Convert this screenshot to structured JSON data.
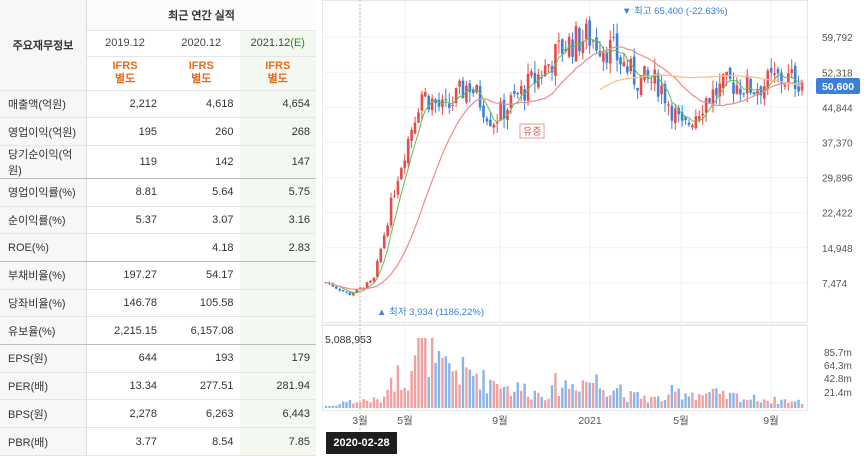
{
  "table": {
    "title": "최근 연간 실적",
    "row_header": "주요재무정보",
    "periods": [
      "2019.12",
      "2020.12",
      "2021.12"
    ],
    "estimate_mark": "(E)",
    "ifrs": [
      "IFRS\n별도",
      "IFRS\n별도",
      "IFRS\n별도"
    ],
    "rows": [
      {
        "label": "매출액(억원)",
        "values": [
          "2,212",
          "4,618",
          "4,654"
        ]
      },
      {
        "label": "영업이익(억원)",
        "values": [
          "195",
          "260",
          "268"
        ]
      },
      {
        "label": "당기순이익(억원)",
        "values": [
          "119",
          "142",
          "147"
        ]
      },
      {
        "label": "영업이익률(%)",
        "values": [
          "8.81",
          "5.64",
          "5.75"
        ]
      },
      {
        "label": "순이익률(%)",
        "values": [
          "5.37",
          "3.07",
          "3.16"
        ]
      },
      {
        "label": "ROE(%)",
        "values": [
          "",
          "4.18",
          "2.83"
        ]
      },
      {
        "label": "부채비율(%)",
        "values": [
          "197.27",
          "54.17",
          ""
        ]
      },
      {
        "label": "당좌비율(%)",
        "values": [
          "146.78",
          "105.58",
          ""
        ]
      },
      {
        "label": "유보율(%)",
        "values": [
          "2,215.15",
          "6,157.08",
          ""
        ]
      },
      {
        "label": "EPS(원)",
        "values": [
          "644",
          "193",
          "179"
        ]
      },
      {
        "label": "PER(배)",
        "values": [
          "13.34",
          "277.51",
          "281.94"
        ]
      },
      {
        "label": "BPS(원)",
        "values": [
          "2,278",
          "6,263",
          "6,443"
        ]
      },
      {
        "label": "PBR(배)",
        "values": [
          "3.77",
          "8.54",
          "7.85"
        ]
      }
    ]
  },
  "chart": {
    "price_ticks": [
      "59,792",
      "52,318",
      "44,844",
      "37,370",
      "29,896",
      "22,422",
      "14,948",
      "7,474"
    ],
    "current_price": "50,600",
    "high_label": "▼ 최고 65,400 (-22.63%)",
    "low_label": "▲ 최저 3,934 (1186.22%)",
    "month_labels": [
      "3월",
      "5월",
      "9월",
      "2021",
      "5월",
      "9월"
    ],
    "volume_ticks": [
      "85.7m",
      "64.3m",
      "42.8m",
      "21.4m"
    ],
    "volume_cursor_value": "5,088,953",
    "cursor_date": "2020-02-28",
    "annotation": "유증",
    "colors": {
      "up": "#e84a4a",
      "down": "#3b7fd9",
      "ma5": "#5bbf4f",
      "ma20": "#f08a8a",
      "ma120": "#f5c089",
      "vol_up": "#f0a0a0",
      "vol_down": "#8ab4e8",
      "price_box": "#3b7fd9"
    }
  },
  "chart_data": {
    "type": "candlestick",
    "x": [
      "2020-02",
      "2020-03",
      "2020-04",
      "2020-05",
      "2020-06",
      "2020-07",
      "2020-08",
      "2020-09",
      "2020-10",
      "2020-11",
      "2020-12",
      "2021-01",
      "2021-02",
      "2021-03",
      "2021-04",
      "2021-05",
      "2021-06",
      "2021-07",
      "2021-08",
      "2021-09",
      "2021-10"
    ],
    "series": [
      {
        "name": "close",
        "values": [
          7600,
          5000,
          8000,
          30000,
          48000,
          44000,
          50000,
          42000,
          47000,
          52000,
          58000,
          60000,
          57000,
          51000,
          50000,
          40000,
          47000,
          50000,
          49000,
          51000,
          50600
        ]
      }
    ],
    "volume": [
      3,
      8,
      10,
      40,
      75,
      50,
      45,
      35,
      25,
      20,
      30,
      35,
      28,
      15,
      12,
      20,
      18,
      15,
      12,
      10,
      8
    ],
    "ylim": [
      3934,
      65400
    ],
    "high": 65400,
    "low": 3934
  }
}
